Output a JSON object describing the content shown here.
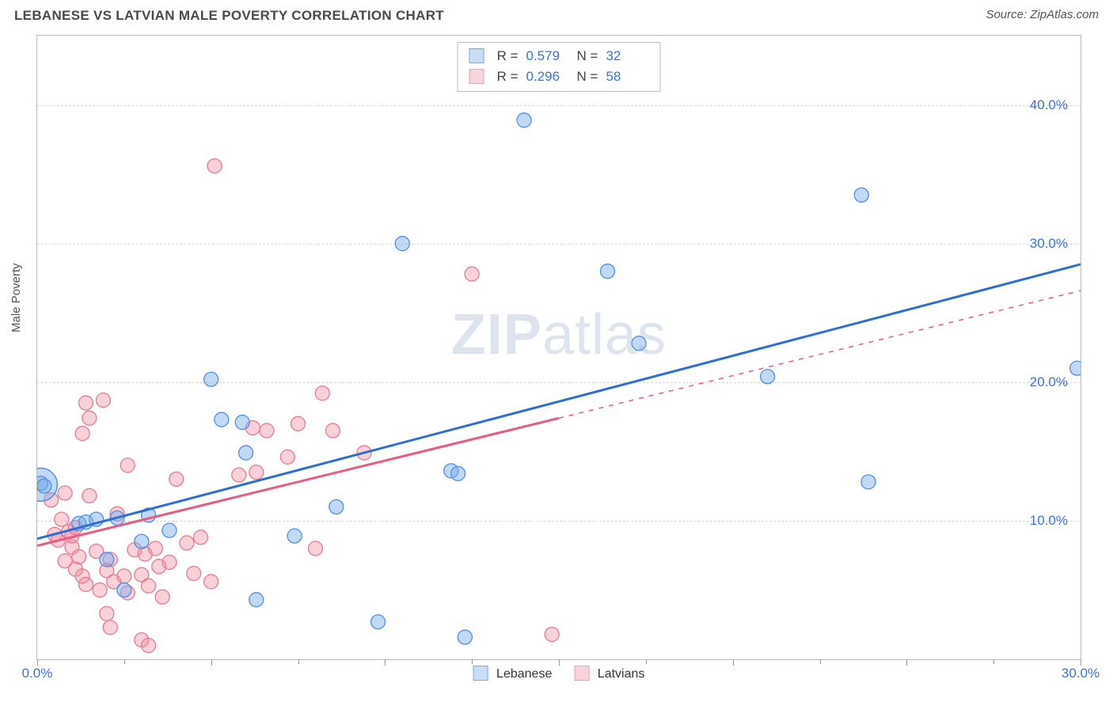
{
  "header": {
    "title": "LEBANESE VS LATVIAN MALE POVERTY CORRELATION CHART",
    "source": "Source: ZipAtlas.com"
  },
  "chart": {
    "type": "scatter",
    "ylabel": "Male Poverty",
    "watermark": {
      "bold": "ZIP",
      "rest": "atlas"
    },
    "background_color": "#ffffff",
    "border_color": "#bbbbbb",
    "grid_color": "#d8d8d8",
    "text_color": "#4a4a4a",
    "axis_value_color": "#3a74d8",
    "xlim": [
      0,
      30
    ],
    "ylim": [
      0,
      45
    ],
    "y_ticks": [
      10,
      20,
      30,
      40
    ],
    "y_tick_labels": [
      "10.0%",
      "20.0%",
      "30.0%",
      "40.0%"
    ],
    "x_ticks_major": [
      0,
      5,
      10,
      15,
      20,
      25,
      30
    ],
    "x_ticks_minor": [
      2.5,
      7.5,
      12.5,
      17.5,
      22.5,
      27.5
    ],
    "x_tick_labels": {
      "0": "0.0%",
      "30": "30.0%"
    },
    "series": [
      {
        "name": "Lebanese",
        "legend_label": "Lebanese",
        "marker_color_fill": "rgba(120,170,235,0.45)",
        "marker_color_stroke": "#4f8fe0",
        "swatch_fill": "#c9ddf6",
        "swatch_border": "#7aa9e6",
        "marker_radius": 9,
        "R": "0.579",
        "N": "32",
        "trend": {
          "color": "#2e6fd6",
          "width": 3,
          "x1": 0,
          "y1": 8.7,
          "x2": 30,
          "y2": 28.5,
          "style": "solid"
        },
        "points": [
          [
            0.1,
            12.7
          ],
          [
            0.2,
            12.5
          ],
          [
            1.2,
            9.8
          ],
          [
            1.4,
            9.9
          ],
          [
            1.7,
            10.1
          ],
          [
            2.0,
            7.2
          ],
          [
            2.3,
            10.2
          ],
          [
            2.5,
            5.0
          ],
          [
            3.0,
            8.5
          ],
          [
            3.2,
            10.4
          ],
          [
            3.8,
            9.3
          ],
          [
            5.0,
            20.2
          ],
          [
            5.3,
            17.3
          ],
          [
            5.9,
            17.1
          ],
          [
            6.0,
            14.9
          ],
          [
            6.3,
            4.3
          ],
          [
            7.4,
            8.9
          ],
          [
            8.6,
            11.0
          ],
          [
            9.8,
            2.7
          ],
          [
            10.5,
            30.0
          ],
          [
            11.9,
            13.6
          ],
          [
            12.1,
            13.4
          ],
          [
            12.3,
            1.6
          ],
          [
            14.0,
            38.9
          ],
          [
            16.4,
            28.0
          ],
          [
            17.3,
            22.8
          ],
          [
            21.0,
            20.4
          ],
          [
            23.7,
            33.5
          ],
          [
            23.9,
            12.8
          ],
          [
            29.9,
            21.0
          ]
        ],
        "big_points": [
          {
            "x": 0.1,
            "y": 12.6,
            "r": 21
          }
        ]
      },
      {
        "name": "Latvians",
        "legend_label": "Latvians",
        "marker_color_fill": "rgba(240,140,160,0.40)",
        "marker_color_stroke": "#e67a95",
        "swatch_fill": "#f7d3dc",
        "swatch_border": "#eba0b3",
        "marker_radius": 9,
        "R": "0.296",
        "N": "58",
        "trend": {
          "color": "#e85b84",
          "width": 3,
          "x1": 0,
          "y1": 8.2,
          "x2": 15,
          "y2": 17.4,
          "style": "solid",
          "dash_ext": {
            "x1": 15,
            "y1": 17.4,
            "x2": 30,
            "y2": 26.6
          }
        },
        "points": [
          [
            0.4,
            11.5
          ],
          [
            0.5,
            9.0
          ],
          [
            0.6,
            8.6
          ],
          [
            0.7,
            10.1
          ],
          [
            0.8,
            7.1
          ],
          [
            0.8,
            12.0
          ],
          [
            0.9,
            9.2
          ],
          [
            1.0,
            8.1
          ],
          [
            1.0,
            8.9
          ],
          [
            1.1,
            6.5
          ],
          [
            1.1,
            9.5
          ],
          [
            1.2,
            7.4
          ],
          [
            1.3,
            6.0
          ],
          [
            1.3,
            16.3
          ],
          [
            1.4,
            5.4
          ],
          [
            1.4,
            18.5
          ],
          [
            1.5,
            11.8
          ],
          [
            1.5,
            17.4
          ],
          [
            1.7,
            7.8
          ],
          [
            1.8,
            5.0
          ],
          [
            1.9,
            18.7
          ],
          [
            2.0,
            3.3
          ],
          [
            2.0,
            6.4
          ],
          [
            2.1,
            7.2
          ],
          [
            2.1,
            2.3
          ],
          [
            2.2,
            5.6
          ],
          [
            2.3,
            10.5
          ],
          [
            2.5,
            6.0
          ],
          [
            2.6,
            4.8
          ],
          [
            2.6,
            14.0
          ],
          [
            2.8,
            7.9
          ],
          [
            3.0,
            1.4
          ],
          [
            3.0,
            6.1
          ],
          [
            3.1,
            7.6
          ],
          [
            3.2,
            5.3
          ],
          [
            3.2,
            1.0
          ],
          [
            3.4,
            8.0
          ],
          [
            3.5,
            6.7
          ],
          [
            3.6,
            4.5
          ],
          [
            3.8,
            7.0
          ],
          [
            4.0,
            13.0
          ],
          [
            4.3,
            8.4
          ],
          [
            4.5,
            6.2
          ],
          [
            4.7,
            8.8
          ],
          [
            5.0,
            5.6
          ],
          [
            5.1,
            35.6
          ],
          [
            5.8,
            13.3
          ],
          [
            6.2,
            16.7
          ],
          [
            6.3,
            13.5
          ],
          [
            6.6,
            16.5
          ],
          [
            7.2,
            14.6
          ],
          [
            7.5,
            17.0
          ],
          [
            8.0,
            8.0
          ],
          [
            8.2,
            19.2
          ],
          [
            8.5,
            16.5
          ],
          [
            9.4,
            14.9
          ],
          [
            12.5,
            27.8
          ],
          [
            14.8,
            1.8
          ]
        ]
      }
    ],
    "stats_legend": {
      "rows": [
        {
          "swatch_fill": "#c9ddf6",
          "swatch_border": "#7aa9e6",
          "R_label": "R =",
          "R": "0.579",
          "N_label": "N =",
          "N": "32"
        },
        {
          "swatch_fill": "#f7d3dc",
          "swatch_border": "#eba0b3",
          "R_label": "R =",
          "R": "0.296",
          "N_label": "N =",
          "N": "58"
        }
      ]
    }
  }
}
